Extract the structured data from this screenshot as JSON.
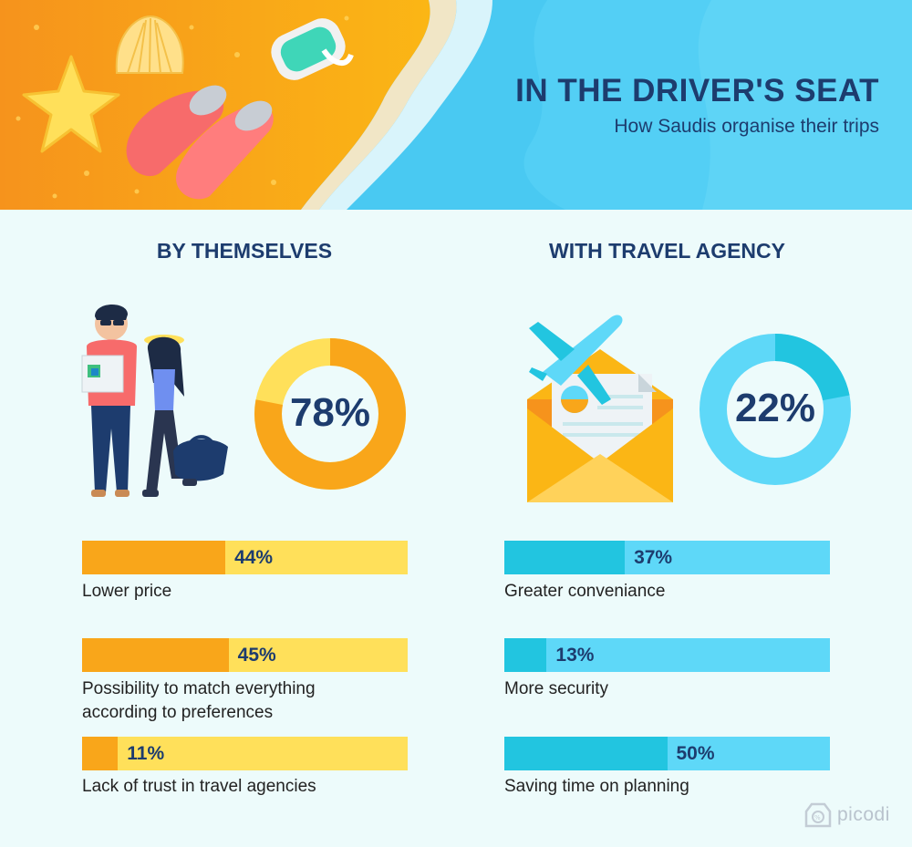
{
  "header": {
    "title": "IN THE DRIVER'S SEAT",
    "subtitle": "How Saudis organise their trips"
  },
  "colors": {
    "navy": "#1d3c6e",
    "orange": "#f9a61a",
    "yellow": "#ffe05a",
    "cyan": "#22c5e0",
    "light_cyan": "#5ed8f8",
    "background": "#edfbfb"
  },
  "left": {
    "heading": "BY THEMSELVES",
    "donut_value": "78%",
    "donut_fraction": 0.78,
    "bars": [
      {
        "value": "44%",
        "fraction": 0.44,
        "label": "Lower price"
      },
      {
        "value": "45%",
        "fraction": 0.45,
        "label": "Possibility to match everything according to preferences"
      },
      {
        "value": "11%",
        "fraction": 0.11,
        "label": "Lack of trust in travel agencies"
      }
    ]
  },
  "right": {
    "heading": "WITH TRAVEL AGENCY",
    "donut_value": "22%",
    "donut_fraction": 0.22,
    "bars": [
      {
        "value": "37%",
        "fraction": 0.37,
        "label": "Greater conveniance"
      },
      {
        "value": "13%",
        "fraction": 0.13,
        "label": "More security"
      },
      {
        "value": "50%",
        "fraction": 0.5,
        "label": "Saving time on planning"
      }
    ]
  },
  "logo": {
    "text": "picodi",
    "icon": "picodi-logo-icon"
  },
  "icons": [
    "starfish-icon",
    "seashell-icon",
    "flippers-icon",
    "diving-mask-icon",
    "travelers-couple-icon",
    "airplane-icon",
    "envelope-ticket-icon"
  ]
}
